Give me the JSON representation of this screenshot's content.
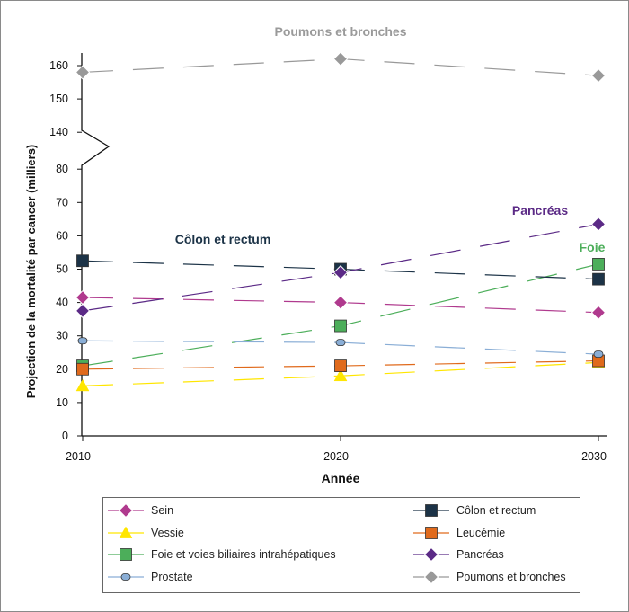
{
  "chart_data": {
    "type": "line",
    "title": "",
    "xlabel": "Année",
    "ylabel": "Projection de la mortalité par cancer (milliers)",
    "x": [
      2010,
      2020,
      2030
    ],
    "x_ticks": [
      "2010",
      "2020",
      "2030"
    ],
    "y_ticks": [
      "0",
      "10",
      "20",
      "30",
      "40",
      "50",
      "60",
      "70",
      "80",
      "140",
      "150",
      "160"
    ],
    "axis_break": [
      80,
      140
    ],
    "ylim": [
      0,
      160
    ],
    "grid": false,
    "legend_position": "bottom",
    "series": [
      {
        "name": "Sein",
        "values": [
          41.5,
          40,
          37
        ],
        "color": "#b03a8e",
        "marker": "diamond"
      },
      {
        "name": "Côlon et rectum",
        "values": [
          52.5,
          50,
          47
        ],
        "color": "#1c3347",
        "marker": "square"
      },
      {
        "name": "Vessie",
        "values": [
          15,
          18,
          22
        ],
        "color": "#ffe600",
        "marker": "triangle"
      },
      {
        "name": "Leucémie",
        "values": [
          20,
          21,
          22.5
        ],
        "color": "#e06a1c",
        "marker": "square"
      },
      {
        "name": "Foie et voies biliaires intrahépatiques",
        "values": [
          21,
          33,
          51.5
        ],
        "color": "#4cae5a",
        "marker": "square"
      },
      {
        "name": "Pancréas",
        "values": [
          37.5,
          49,
          63.5
        ],
        "color": "#5b2a86",
        "marker": "diamond"
      },
      {
        "name": "Prostate",
        "values": [
          28.5,
          28,
          24.5
        ],
        "color": "#8aaed6",
        "marker": "circle"
      },
      {
        "name": "Poumons et bronches",
        "values": [
          158,
          162,
          157
        ],
        "color": "#999999",
        "marker": "diamond"
      }
    ],
    "annotations": [
      {
        "text": "Poumons et bronches",
        "color": "#9a9a9a"
      },
      {
        "text": "Pancréas",
        "color": "#5b2a86"
      },
      {
        "text": "Côlon et rectum",
        "color": "#1c3347"
      },
      {
        "text": "Foie",
        "color": "#4cae5a"
      }
    ]
  }
}
